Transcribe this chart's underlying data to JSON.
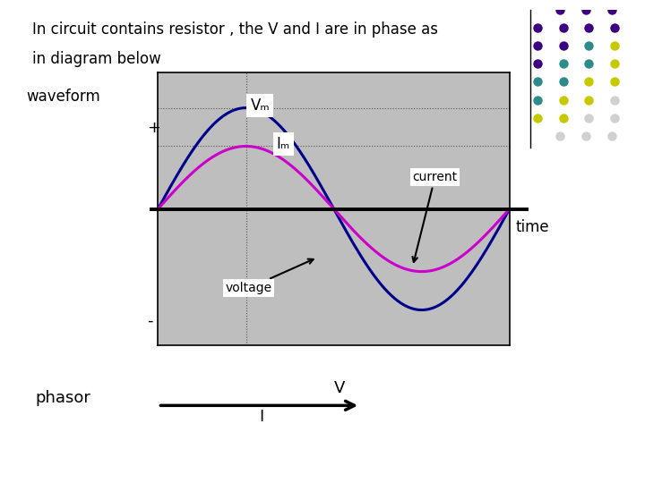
{
  "title_line1": "In circuit contains resistor , the V and I are in phase as",
  "title_line2": "in diagram below",
  "title_fontsize": 12,
  "waveform_label": "waveform",
  "plus_label": "+",
  "minus_label": "-",
  "time_label": "time",
  "voltage_label": "voltage",
  "current_label": "current",
  "Vm_label": "Vₘ",
  "Im_label": "Iₘ",
  "phasor_label": "phasor",
  "V_label": "V",
  "I_label": "I",
  "voltage_color": "#00008B",
  "current_color": "#CC00CC",
  "plot_bg_color": "#BEBEBE",
  "white_bg": "#FFFFFF",
  "amplitude_voltage": 1.0,
  "amplitude_current": 0.62,
  "dot_layout": [
    [
      "#3A0080",
      "#3A0080",
      "#3A0080"
    ],
    [
      "#3A0080",
      "#3A0080",
      "#3A0080",
      "#3A0080"
    ],
    [
      "#3A0080",
      "#3A0080",
      "#2E8B8B",
      "#C8C800"
    ],
    [
      "#3A0080",
      "#2E8B8B",
      "#2E8B8B",
      "#C8C800"
    ],
    [
      "#2E8B8B",
      "#2E8B8B",
      "#C8C800",
      "#C8C800"
    ],
    [
      "#2E8B8B",
      "#C8C800",
      "#C8C800",
      "#C0C0C0"
    ],
    [
      "#C8C800",
      "#C8C800",
      "#C0C0C0",
      "#C0C0C0"
    ],
    [
      "#C0C0C0",
      "#C0C0C0",
      "#C0C0C0"
    ]
  ]
}
